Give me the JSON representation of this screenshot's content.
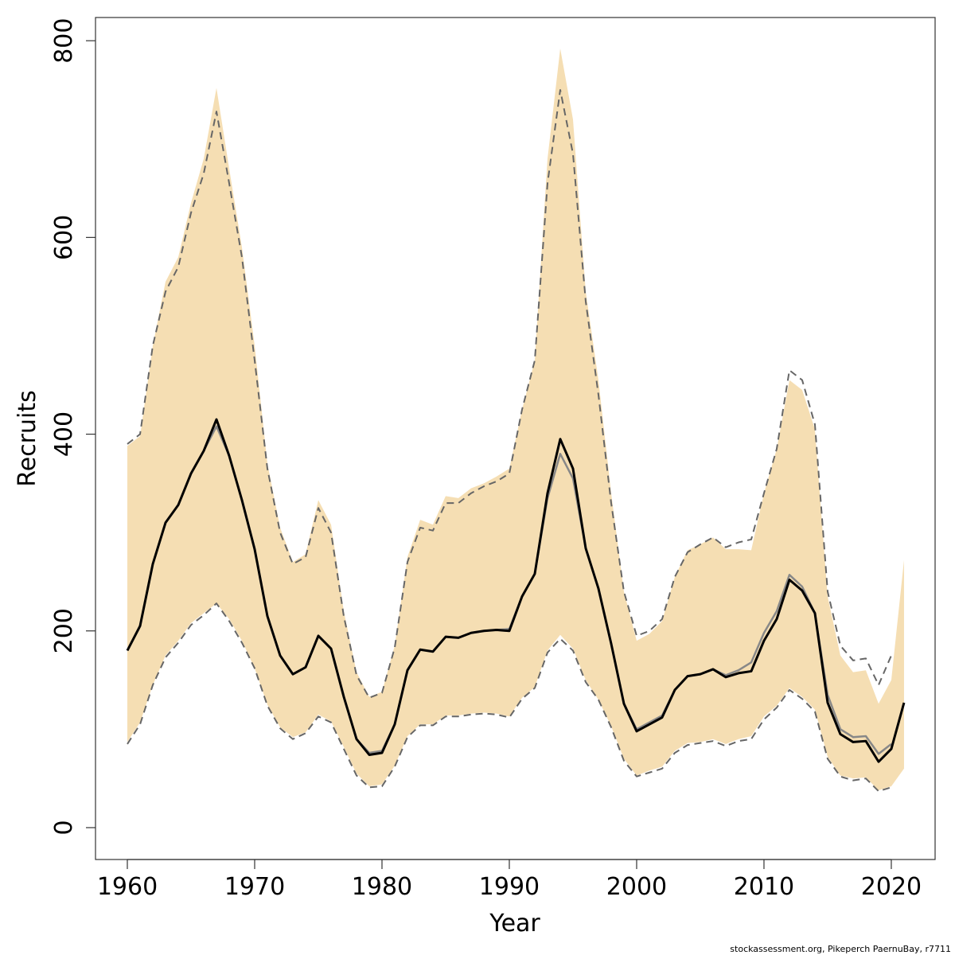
{
  "chart_data": {
    "type": "line",
    "xlabel": "Year",
    "ylabel": "Recruits",
    "footnote": "stockassessment.org, Pikeperch PaernuBay, r7711",
    "x": [
      1960,
      1961,
      1962,
      1963,
      1964,
      1965,
      1966,
      1967,
      1968,
      1969,
      1970,
      1971,
      1972,
      1973,
      1974,
      1975,
      1976,
      1977,
      1978,
      1979,
      1980,
      1981,
      1982,
      1983,
      1984,
      1985,
      1986,
      1987,
      1988,
      1989,
      1990,
      1991,
      1992,
      1993,
      1994,
      1995,
      1996,
      1997,
      1998,
      1999,
      2000,
      2001,
      2002,
      2003,
      2004,
      2005,
      2006,
      2007,
      2008,
      2009,
      2010,
      2011,
      2012,
      2013,
      2014,
      2015,
      2016,
      2017,
      2018,
      2019,
      2020,
      2021
    ],
    "band": {
      "color": "#f5deb3",
      "upper": [
        388,
        398,
        490,
        555,
        580,
        635,
        680,
        752,
        670,
        590,
        490,
        370,
        305,
        270,
        278,
        333,
        308,
        220,
        158,
        133,
        138,
        185,
        275,
        313,
        308,
        337,
        335,
        345,
        350,
        357,
        365,
        425,
        475,
        680,
        792,
        720,
        545,
        455,
        340,
        240,
        190,
        197,
        210,
        255,
        282,
        288,
        295,
        283,
        283,
        282,
        340,
        385,
        455,
        445,
        405,
        235,
        175,
        158,
        160,
        126,
        150,
        272
      ],
      "lower": [
        87,
        107,
        145,
        175,
        190,
        208,
        218,
        228,
        212,
        190,
        162,
        125,
        102,
        92,
        97,
        115,
        108,
        82,
        55,
        42,
        44,
        63,
        93,
        105,
        105,
        114,
        114,
        116,
        117,
        116,
        113,
        132,
        143,
        180,
        196,
        182,
        150,
        130,
        103,
        70,
        53,
        58,
        62,
        78,
        86,
        87,
        90,
        85,
        90,
        93,
        113,
        124,
        142,
        133,
        120,
        72,
        53,
        50,
        51,
        38,
        42,
        60
      ]
    },
    "series": [
      {
        "color": "#666666",
        "dashed": true,
        "width": 2,
        "values": [
          390,
          400,
          490,
          545,
          570,
          625,
          665,
          728,
          655,
          580,
          475,
          365,
          300,
          268,
          275,
          325,
          300,
          215,
          155,
          132,
          137,
          183,
          270,
          305,
          302,
          330,
          330,
          340,
          347,
          352,
          360,
          425,
          475,
          655,
          750,
          685,
          535,
          440,
          330,
          240,
          195,
          200,
          212,
          255,
          280,
          288,
          295,
          285,
          290,
          293,
          340,
          385,
          465,
          455,
          410,
          240,
          185,
          170,
          172,
          145,
          175,
          null
        ]
      },
      {
        "color": "#666666",
        "dashed": true,
        "width": 2,
        "values": [
          85,
          105,
          145,
          173,
          188,
          206,
          216,
          228,
          210,
          188,
          162,
          124,
          101,
          90,
          96,
          113,
          107,
          80,
          53,
          41,
          42,
          62,
          92,
          104,
          104,
          113,
          113,
          115,
          116,
          115,
          112,
          131,
          142,
          178,
          192,
          180,
          148,
          130,
          102,
          68,
          52,
          56,
          60,
          76,
          84,
          86,
          88,
          83,
          88,
          90,
          110,
          122,
          140,
          131,
          118,
          70,
          52,
          48,
          50,
          37,
          41,
          null
        ]
      },
      {
        "color": "#888888",
        "dashed": false,
        "width": 2.5,
        "values": [
          180,
          205,
          268,
          310,
          328,
          360,
          383,
          408,
          378,
          333,
          283,
          215,
          175,
          156,
          163,
          195,
          182,
          133,
          90,
          76,
          78,
          105,
          160,
          181,
          179,
          194,
          193,
          198,
          200,
          201,
          202,
          235,
          258,
          335,
          380,
          355,
          284,
          243,
          187,
          126,
          100,
          107,
          114,
          140,
          154,
          156,
          161,
          155,
          160,
          168,
          198,
          220,
          257,
          245,
          218,
          135,
          100,
          92,
          93,
          75,
          85,
          null
        ]
      },
      {
        "color": "#000000",
        "dashed": false,
        "width": 3,
        "values": [
          180,
          205,
          268,
          310,
          328,
          360,
          383,
          415,
          378,
          333,
          283,
          215,
          175,
          156,
          163,
          195,
          182,
          133,
          90,
          74,
          76,
          105,
          160,
          181,
          179,
          194,
          193,
          198,
          200,
          201,
          200,
          235,
          258,
          340,
          395,
          365,
          284,
          243,
          187,
          126,
          98,
          105,
          112,
          140,
          154,
          156,
          161,
          153,
          157,
          159,
          190,
          212,
          252,
          241,
          218,
          127,
          95,
          87,
          88,
          67,
          80,
          127
        ]
      }
    ],
    "xlim": [
      1957.5,
      2023.44
    ],
    "ylim": [
      -32.4,
      823.6
    ],
    "xticks": [
      1960,
      1970,
      1980,
      1990,
      2000,
      2010,
      2020
    ],
    "yticks": [
      0,
      200,
      400,
      600,
      800
    ]
  }
}
